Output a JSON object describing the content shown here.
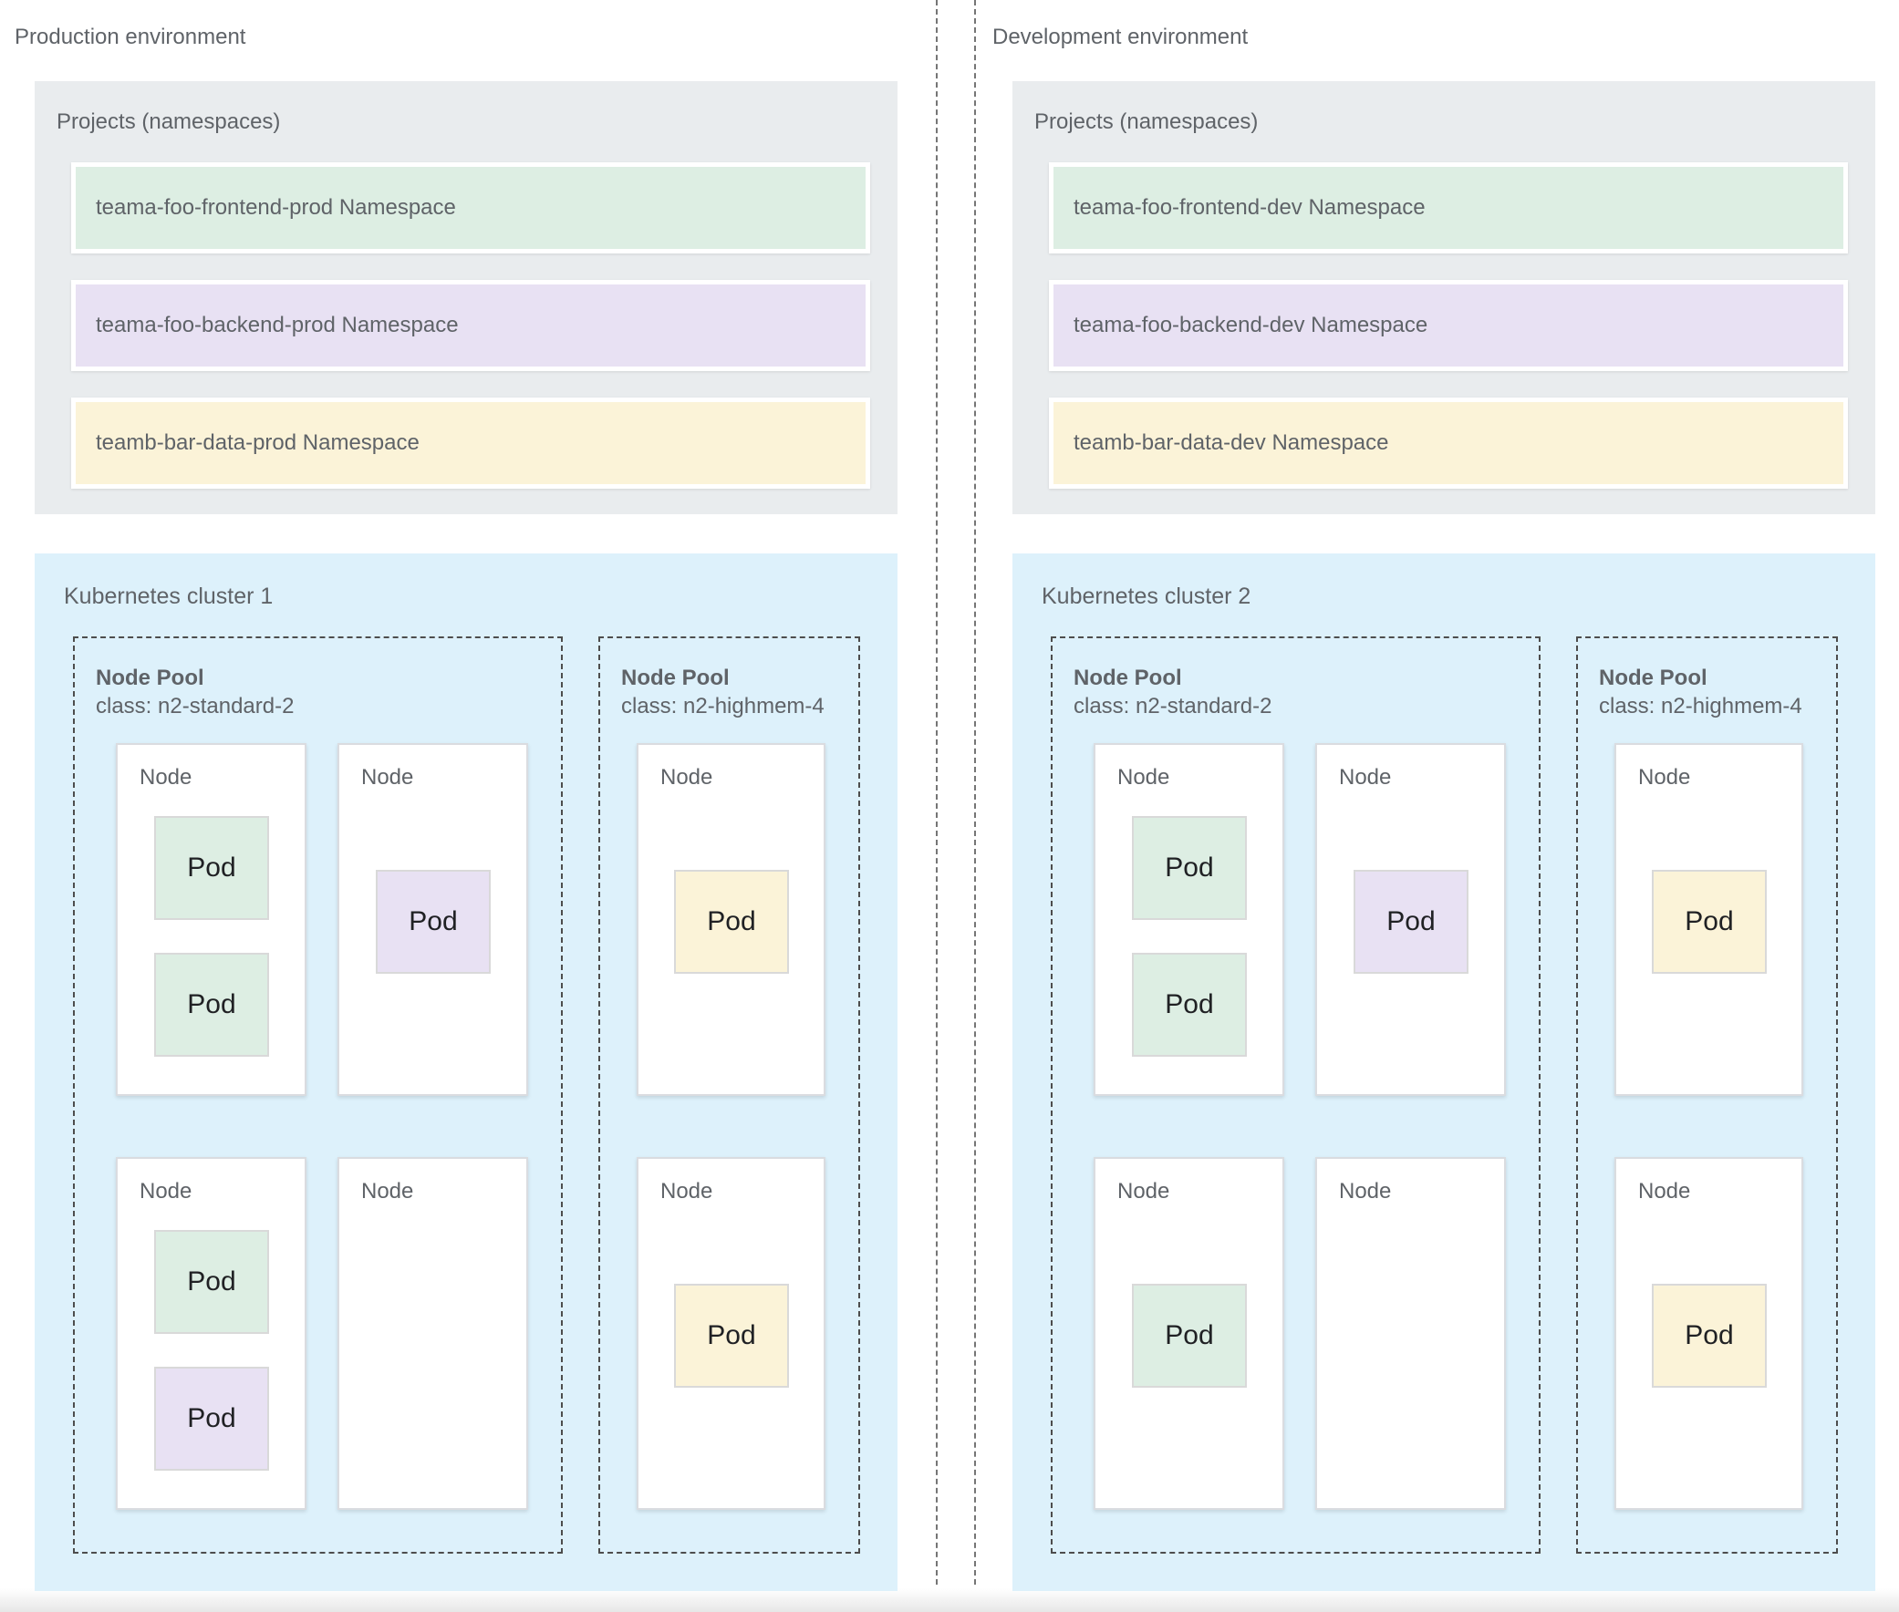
{
  "labels": {
    "pod": "Pod",
    "node": "Node"
  },
  "colors": {
    "green": "#ddeee3",
    "purple": "#e8e1f3",
    "yellow": "#fbf3d8",
    "cluster_bg": "#ddf1fb",
    "projects_bg": "#e9ecee",
    "text_gray": "#5f6368"
  },
  "environments": [
    {
      "id": "prod",
      "label": "Production environment",
      "projects": {
        "title": "Projects (namespaces)",
        "namespaces": [
          {
            "label": "teama-foo-frontend-prod Namespace",
            "color": "green"
          },
          {
            "label": "teama-foo-backend-prod Namespace",
            "color": "purple"
          },
          {
            "label": "teamb-bar-data-prod Namespace",
            "color": "yellow"
          }
        ]
      },
      "cluster": {
        "label": "Kubernetes cluster 1",
        "node_pools": [
          {
            "title": "Node Pool",
            "class": "class: n2-standard-2",
            "cols": 2,
            "nodes": [
              {
                "pods": [
                  "green",
                  "green"
                ]
              },
              {
                "pods": [
                  "purple"
                ]
              },
              {
                "pods": [
                  "green",
                  "purple"
                ]
              },
              {
                "pods": []
              }
            ]
          },
          {
            "title": "Node Pool",
            "class": "class: n2-highmem-4",
            "cols": 1,
            "nodes": [
              {
                "pods": [
                  "yellow"
                ]
              },
              {
                "pods": [
                  "yellow"
                ]
              }
            ]
          }
        ]
      }
    },
    {
      "id": "dev",
      "label": "Development environment",
      "projects": {
        "title": "Projects (namespaces)",
        "namespaces": [
          {
            "label": "teama-foo-frontend-dev Namespace",
            "color": "green"
          },
          {
            "label": "teama-foo-backend-dev Namespace",
            "color": "purple"
          },
          {
            "label": "teamb-bar-data-dev Namespace",
            "color": "yellow"
          }
        ]
      },
      "cluster": {
        "label": "Kubernetes cluster 2",
        "node_pools": [
          {
            "title": "Node Pool",
            "class": "class: n2-standard-2",
            "cols": 2,
            "nodes": [
              {
                "pods": [
                  "green",
                  "green"
                ]
              },
              {
                "pods": [
                  "purple"
                ]
              },
              {
                "pods": [
                  "green"
                ]
              },
              {
                "pods": []
              }
            ]
          },
          {
            "title": "Node Pool",
            "class": "class: n2-highmem-4",
            "cols": 1,
            "nodes": [
              {
                "pods": [
                  "yellow"
                ]
              },
              {
                "pods": [
                  "yellow"
                ]
              }
            ]
          }
        ]
      }
    }
  ]
}
